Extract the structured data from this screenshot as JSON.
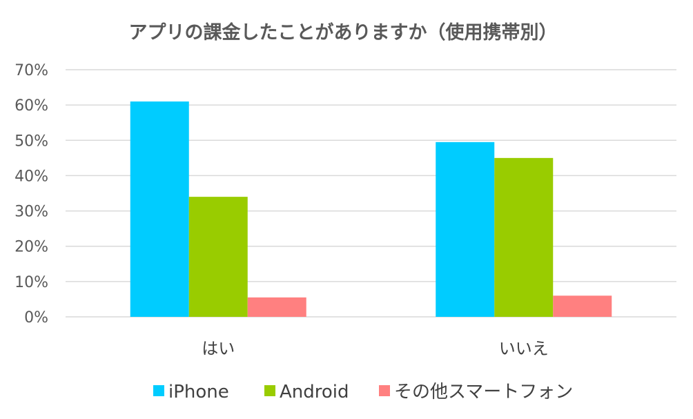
{
  "chart_data": {
    "type": "bar",
    "title": "アプリの課金したことがありますか（使用携帯別）",
    "categories": [
      "はい",
      "いいえ"
    ],
    "series": [
      {
        "name": "iPhone",
        "color": "#00CCFF",
        "values": [
          61,
          49.5
        ]
      },
      {
        "name": "Android",
        "color": "#99CC00",
        "values": [
          34,
          45
        ]
      },
      {
        "name": "その他スマートフォン",
        "color": "#FF8080",
        "values": [
          5.5,
          6
        ]
      }
    ],
    "ylim": [
      0,
      70
    ],
    "yticks": [
      "0%",
      "10%",
      "20%",
      "30%",
      "40%",
      "50%",
      "60%",
      "70%"
    ],
    "ytick_values": [
      0,
      10,
      20,
      30,
      40,
      50,
      60,
      70
    ],
    "grid": true,
    "legend_position": "bottom",
    "xlabel": "",
    "ylabel": ""
  }
}
